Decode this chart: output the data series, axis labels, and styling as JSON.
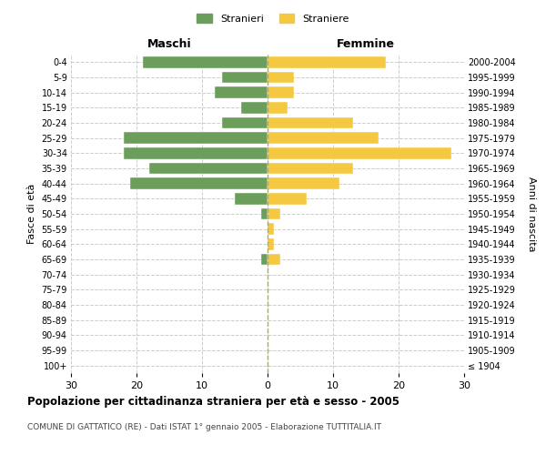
{
  "age_groups": [
    "100+",
    "95-99",
    "90-94",
    "85-89",
    "80-84",
    "75-79",
    "70-74",
    "65-69",
    "60-64",
    "55-59",
    "50-54",
    "45-49",
    "40-44",
    "35-39",
    "30-34",
    "25-29",
    "20-24",
    "15-19",
    "10-14",
    "5-9",
    "0-4"
  ],
  "birth_years": [
    "≤ 1904",
    "1905-1909",
    "1910-1914",
    "1915-1919",
    "1920-1924",
    "1925-1929",
    "1930-1934",
    "1935-1939",
    "1940-1944",
    "1945-1949",
    "1950-1954",
    "1955-1959",
    "1960-1964",
    "1965-1969",
    "1970-1974",
    "1975-1979",
    "1980-1984",
    "1985-1989",
    "1990-1994",
    "1995-1999",
    "2000-2004"
  ],
  "maschi": [
    0,
    0,
    0,
    0,
    0,
    0,
    0,
    1,
    0,
    0,
    1,
    5,
    21,
    18,
    22,
    22,
    7,
    4,
    8,
    7,
    19
  ],
  "femmine": [
    0,
    0,
    0,
    0,
    0,
    0,
    0,
    2,
    1,
    1,
    2,
    6,
    11,
    13,
    28,
    17,
    13,
    3,
    4,
    4,
    18
  ],
  "color_maschi": "#6a9e5a",
  "color_femmine": "#f5c842",
  "xlim": 30,
  "title": "Popolazione per cittadinanza straniera per età e sesso - 2005",
  "subtitle": "COMUNE DI GATTATICO (RE) - Dati ISTAT 1° gennaio 2005 - Elaborazione TUTTITALIA.IT",
  "label_maschi": "Stranieri",
  "label_femmine": "Straniere",
  "xlabel_left": "Maschi",
  "xlabel_right": "Femmine",
  "ylabel_left": "Fasce di età",
  "ylabel_right": "Anni di nascita",
  "background_color": "#ffffff",
  "grid_color": "#cccccc"
}
